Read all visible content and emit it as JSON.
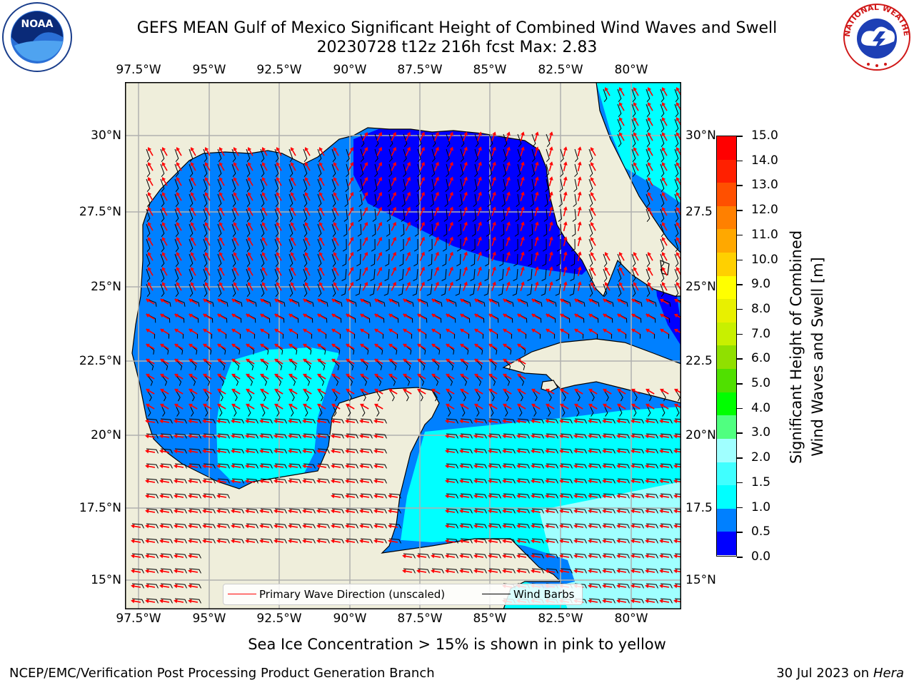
{
  "title_line1": "GEFS MEAN Gulf of Mexico Significant Height of Combined Wind Waves and Swell",
  "title_line2": "20230728 t12z 216h fcst   Max: 2.83",
  "x_ticks": [
    "97.5°W",
    "95°W",
    "92.5°W",
    "90°W",
    "87.5°W",
    "85°W",
    "82.5°W",
    "80°W"
  ],
  "y_ticks_left": [
    "30°N",
    "27.5°N",
    "25°N",
    "22.5°N",
    "20°N",
    "17.5°N",
    "15°N"
  ],
  "y_ticks_right": [
    "30°N",
    "27.5",
    "25°N",
    "22.5",
    "20°N",
    "17.5",
    "15°N"
  ],
  "colorbar": {
    "label_line1": "Significant Height of Combined",
    "label_line2": "Wind Waves and Swell [m]",
    "ticks": [
      "15.0",
      "14.0",
      "13.0",
      "12.0",
      "11.0",
      "10.0",
      "9.0",
      "8.0",
      "7.0",
      "6.0",
      "5.0",
      "4.0",
      "3.0",
      "2.0",
      "1.5",
      "1.0",
      "0.5",
      "0.0"
    ],
    "colors_bottom_to_top": [
      "#0000ff",
      "#0080ff",
      "#00ffff",
      "#40ffff",
      "#a0ffff",
      "#50ff80",
      "#00ff00",
      "#50e000",
      "#90e000",
      "#c8f000",
      "#e8f000",
      "#ffff00",
      "#ffd000",
      "#ffa800",
      "#ff8000",
      "#ff5000",
      "#ff2000",
      "#ff0000"
    ]
  },
  "legend": {
    "wave_label": "Primary Wave Direction (unscaled)",
    "barb_label": "Wind Barbs",
    "wave_color": "#ff0000",
    "barb_color": "#000000"
  },
  "sea_ice_note": "Sea Ice Concentration > 15% is shown in pink to yellow",
  "footer_left": "NCEP/EMC/Verification Post Processing Product Generation Branch",
  "footer_date": "30 Jul 2023 on",
  "footer_host": "Hera",
  "logo_left": "NOAA",
  "logo_right": "NATIONAL WEATHER SERVICE",
  "colors": {
    "land": "#efeedb",
    "grid": "#b0b0b0"
  }
}
